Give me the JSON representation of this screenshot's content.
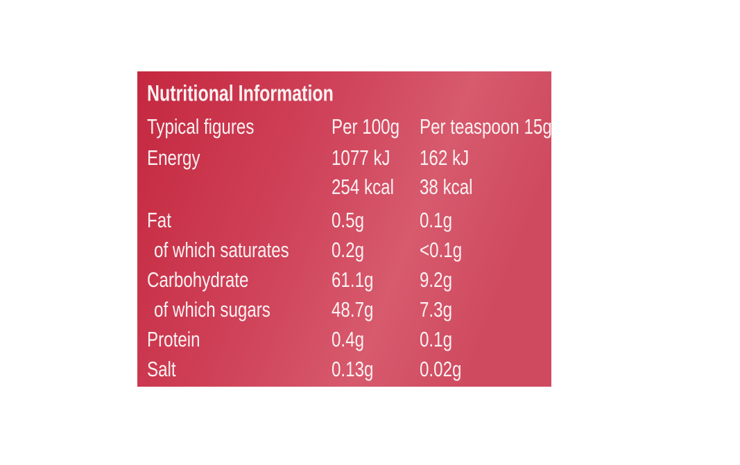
{
  "label": {
    "title": "Nutritional Information",
    "header": {
      "label": "Typical figures",
      "per_100g": "Per 100g",
      "per_teaspoon": "Per teaspoon 15g"
    },
    "rows": [
      {
        "label": "Energy",
        "per_100g": [
          "1077 kJ",
          "254 kcal"
        ],
        "per_teaspoon": [
          "162 kJ",
          "38 kcal"
        ]
      },
      {
        "label": "Fat",
        "per_100g": [
          "0.5g"
        ],
        "per_teaspoon": [
          "0.1g"
        ],
        "sub": {
          "label": "of which saturates",
          "per_100g": "0.2g",
          "per_teaspoon": "<0.1g"
        }
      },
      {
        "label": "Carbohydrate",
        "per_100g": [
          "61.1g"
        ],
        "per_teaspoon": [
          "9.2g"
        ],
        "sub": {
          "label": "of which sugars",
          "per_100g": "48.7g",
          "per_teaspoon": "7.3g"
        }
      },
      {
        "label": "Protein",
        "per_100g": [
          "0.4g"
        ],
        "per_teaspoon": [
          "0.1g"
        ]
      },
      {
        "label": "Salt",
        "per_100g": [
          "0.13g"
        ],
        "per_teaspoon": [
          "0.02g"
        ]
      }
    ]
  }
}
